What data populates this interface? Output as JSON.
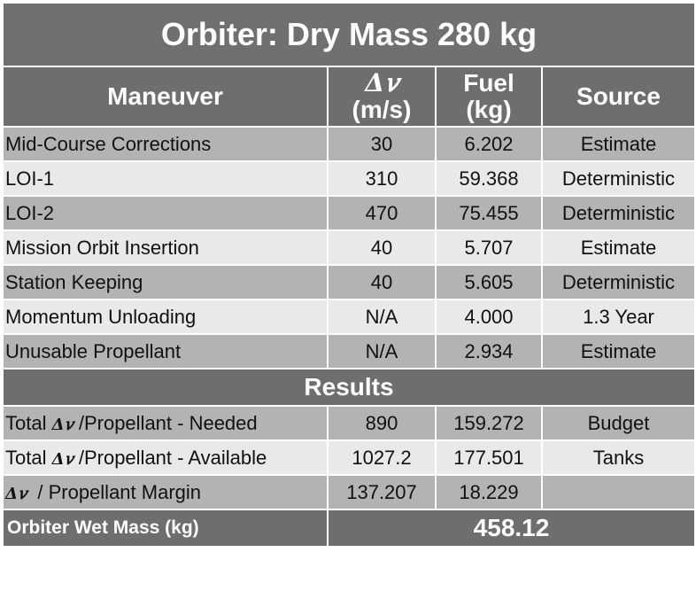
{
  "title": "Orbiter: Dry Mass 280 kg",
  "headers": {
    "maneuver": "Maneuver",
    "dv_symbol": "Δ𝑣",
    "dv_unit": "(m/s)",
    "fuel": "Fuel",
    "fuel_unit": "(kg)",
    "source": "Source"
  },
  "rows": [
    {
      "maneuver": "Mid-Course Corrections",
      "dv": "30",
      "fuel": "6.202",
      "source": "Estimate"
    },
    {
      "maneuver": "LOI-1",
      "dv": "310",
      "fuel": "59.368",
      "source": "Deterministic"
    },
    {
      "maneuver": "LOI-2",
      "dv": "470",
      "fuel": "75.455",
      "source": "Deterministic"
    },
    {
      "maneuver": "Mission Orbit Insertion",
      "dv": "40",
      "fuel": "5.707",
      "source": "Estimate"
    },
    {
      "maneuver": "Station Keeping",
      "dv": "40",
      "fuel": "5.605",
      "source": "Deterministic"
    },
    {
      "maneuver": "Momentum Unloading",
      "dv": "N/A",
      "fuel": "4.000",
      "source": "1.3 Year"
    },
    {
      "maneuver": "Unusable Propellant",
      "dv": "N/A",
      "fuel": "2.934",
      "source": "Estimate"
    }
  ],
  "results": {
    "label": "Results",
    "rows": [
      {
        "prefix": "Total ",
        "symbol": "Δ𝑣",
        "suffix": " /Propellant - Needed",
        "dv": "890",
        "fuel": "159.272",
        "source": "Budget"
      },
      {
        "prefix": "Total ",
        "symbol": "Δ𝑣",
        "suffix": " /Propellant - Available",
        "dv": "1027.2",
        "fuel": "177.501",
        "source": "Tanks"
      },
      {
        "prefix": "",
        "symbol": "Δ𝑣",
        "suffix": "  / Propellant Margin",
        "dv": "137.207",
        "fuel": "18.229",
        "source": ""
      }
    ]
  },
  "wet_mass": {
    "label": "Orbiter Wet Mass (kg)",
    "value": "458.12"
  }
}
